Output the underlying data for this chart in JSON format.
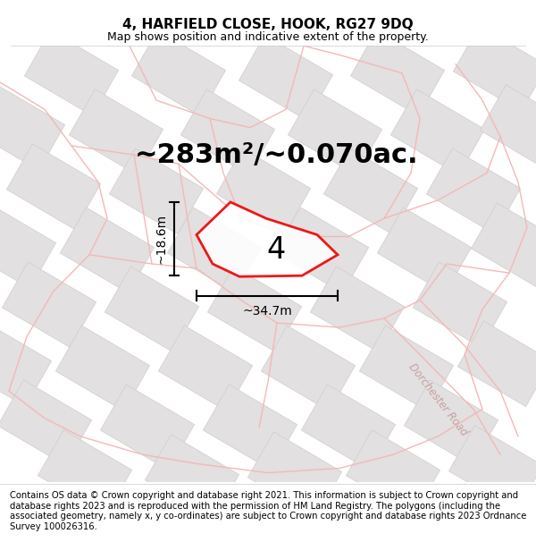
{
  "title": "4, HARFIELD CLOSE, HOOK, RG27 9DQ",
  "subtitle": "Map shows position and indicative extent of the property.",
  "area_text": "~283m²/~0.070ac.",
  "width_label": "~34.7m",
  "height_label": "~18.6m",
  "number_label": "4",
  "footer": "Contains OS data © Crown copyright and database right 2021. This information is subject to Crown copyright and database rights 2023 and is reproduced with the permission of HM Land Registry. The polygons (including the associated geometry, namely x, y co-ordinates) are subject to Crown copyright and database rights 2023 Ordnance Survey 100026316.",
  "bg_color": "#ffffff",
  "map_bg": "#f9f8f8",
  "plot_color": "#ee0000",
  "road_color": "#f4b8b8",
  "road_outline_color": "#f0a0a0",
  "building_color": "#e2e0e0",
  "building_edge": "#d0cccc",
  "title_fontsize": 11,
  "subtitle_fontsize": 9,
  "area_fontsize": 22,
  "label_fontsize": 10,
  "number_fontsize": 24,
  "footer_fontsize": 7.2,
  "dorchester_fontsize": 8.5
}
